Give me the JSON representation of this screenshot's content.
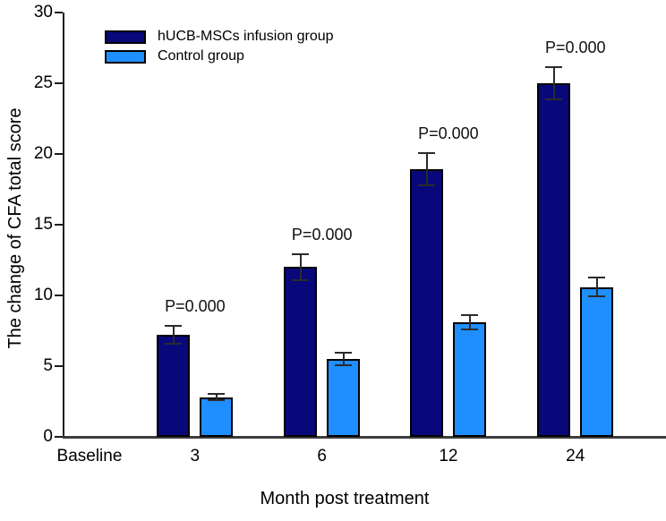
{
  "figure": {
    "background_color": "#ffffff",
    "text_color": "#000000"
  },
  "chart_data": {
    "type": "bar",
    "title": "",
    "xlabel": "Month post treatment",
    "ylabel": "The change of CFA total score",
    "categories": [
      "Baseline",
      "3",
      "6",
      "12",
      "24"
    ],
    "ylim": [
      0,
      30
    ],
    "yticks": [
      0,
      5,
      10,
      15,
      20,
      25,
      30
    ],
    "grid": false,
    "legend_position": "top-left-inside",
    "error_bars": true,
    "series": [
      {
        "name": "hUCB-MSCs infusion group",
        "color": "#08087a",
        "values": [
          null,
          7.2,
          12.0,
          18.9,
          25.0
        ],
        "errors": [
          null,
          0.7,
          1.0,
          1.2,
          1.2
        ]
      },
      {
        "name": "Control group",
        "color": "#1f8fff",
        "values": [
          null,
          2.8,
          5.5,
          8.1,
          10.6
        ],
        "errors": [
          null,
          0.3,
          0.5,
          0.6,
          0.7
        ]
      }
    ],
    "annotations": [
      {
        "category": "3",
        "text": "P=0.000"
      },
      {
        "category": "6",
        "text": "P=0.000"
      },
      {
        "category": "12",
        "text": "P=0.000"
      },
      {
        "category": "24",
        "text": "P=0.000"
      }
    ]
  }
}
